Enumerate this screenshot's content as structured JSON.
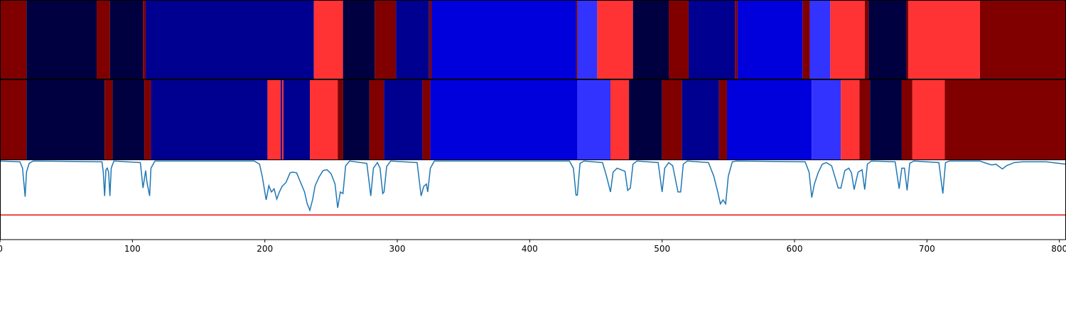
{
  "chart_data": {
    "type": "line",
    "xlim": [
      0,
      805
    ],
    "xticks": [
      0,
      100,
      200,
      300,
      400,
      500,
      600,
      700,
      800
    ],
    "ylim": [
      0,
      1
    ],
    "tracks": [
      {
        "edges": [
          0,
          20,
          73,
          83,
          108,
          110,
          237,
          259,
          283,
          299,
          324,
          326,
          435,
          436,
          451,
          478,
          505,
          520,
          555,
          557,
          606,
          611.5,
          627,
          653,
          656,
          684.5,
          686,
          740,
          805
        ],
        "colors": [
          "#800000",
          "#000040",
          "#800000",
          "#000040",
          "#800000",
          "#000090",
          "#ff3333",
          "#000040",
          "#800000",
          "#000090",
          "#800000",
          "#0000dd",
          "#800000",
          "#3333ff",
          "#ff3333",
          "#000040",
          "#800000",
          "#000090",
          "#800000",
          "#0000dd",
          "#800000",
          "#3333ff",
          "#ff3333",
          "#800000",
          "#000040",
          "#800000",
          "#ff3333",
          "#800000"
        ]
      },
      {
        "edges": [
          0,
          20,
          79,
          85,
          109,
          114,
          202,
          212,
          213,
          214,
          234,
          255,
          259,
          279,
          290,
          319,
          325,
          436,
          461,
          475,
          500,
          515,
          543,
          549,
          613,
          635,
          649,
          657,
          681,
          689,
          713.5,
          805
        ],
        "colors": [
          "#800000",
          "#000040",
          "#800000",
          "#000040",
          "#800000",
          "#000090",
          "#ff3333",
          "#000090",
          "#ff3333",
          "#000090",
          "#ff3333",
          "#800000",
          "#000040",
          "#800000",
          "#000090",
          "#800000",
          "#0000dd",
          "#3333ff",
          "#ff3333",
          "#000040",
          "#800000",
          "#000090",
          "#800000",
          "#0000dd",
          "#3333ff",
          "#ff3333",
          "#800000",
          "#000040",
          "#800000",
          "#ff3333",
          "#800000"
        ]
      }
    ],
    "threshold": 0.31,
    "threshold_color": "#e01010",
    "series": [
      {
        "color": "#1f77b4",
        "x": [
          0,
          15,
          17,
          19,
          20,
          22,
          25,
          77,
          78,
          79,
          80,
          81,
          82,
          83,
          84,
          86,
          106,
          108,
          110,
          111,
          113,
          114,
          117,
          192,
          196,
          198,
          201,
          203,
          205,
          207,
          209,
          211,
          213,
          216,
          219,
          221,
          224,
          227,
          230,
          232,
          234,
          236,
          238,
          241,
          244,
          247,
          250,
          253,
          255,
          257,
          259,
          261,
          264,
          277,
          280,
          282,
          285,
          287,
          289,
          290,
          292,
          295,
          315,
          318,
          320,
          322,
          323,
          325,
          328,
          430,
          433,
          435,
          436,
          438,
          441,
          455,
          458,
          461,
          463,
          466,
          469,
          472,
          474,
          476,
          478,
          481,
          497,
          500,
          502,
          505,
          508,
          512,
          514,
          516,
          519,
          535,
          539,
          542,
          544,
          546,
          548,
          550,
          553,
          556,
          608,
          611,
          613,
          615,
          618,
          621,
          624,
          628,
          633,
          635,
          638,
          641,
          643,
          645,
          648,
          651,
          653,
          655,
          658,
          676,
          679,
          681,
          683,
          685,
          687,
          690,
          709,
          712,
          714,
          717,
          740,
          745,
          749,
          752,
          757,
          760,
          766,
          772,
          790,
          800,
          805
        ],
        "values": [
          0.99,
          0.98,
          0.9,
          0.54,
          0.85,
          0.96,
          0.99,
          0.98,
          0.85,
          0.55,
          0.88,
          0.9,
          0.85,
          0.55,
          0.9,
          0.99,
          0.97,
          0.65,
          0.87,
          0.72,
          0.55,
          0.9,
          0.99,
          0.99,
          0.95,
          0.8,
          0.5,
          0.68,
          0.6,
          0.64,
          0.51,
          0.6,
          0.67,
          0.72,
          0.84,
          0.85,
          0.84,
          0.72,
          0.6,
          0.45,
          0.37,
          0.5,
          0.68,
          0.79,
          0.87,
          0.88,
          0.83,
          0.7,
          0.4,
          0.6,
          0.58,
          0.93,
          0.99,
          0.96,
          0.55,
          0.9,
          0.97,
          0.9,
          0.58,
          0.6,
          0.92,
          0.99,
          0.97,
          0.55,
          0.67,
          0.7,
          0.6,
          0.9,
          0.99,
          0.99,
          0.9,
          0.56,
          0.56,
          0.96,
          0.99,
          0.97,
          0.8,
          0.6,
          0.85,
          0.9,
          0.88,
          0.86,
          0.62,
          0.65,
          0.95,
          0.99,
          0.97,
          0.6,
          0.9,
          0.97,
          0.93,
          0.6,
          0.6,
          0.95,
          0.99,
          0.97,
          0.8,
          0.6,
          0.45,
          0.5,
          0.45,
          0.8,
          0.98,
          0.99,
          0.98,
          0.85,
          0.53,
          0.7,
          0.85,
          0.95,
          0.97,
          0.93,
          0.65,
          0.65,
          0.87,
          0.9,
          0.84,
          0.63,
          0.85,
          0.88,
          0.63,
          0.95,
          0.99,
          0.98,
          0.64,
          0.9,
          0.9,
          0.62,
          0.96,
          0.99,
          0.97,
          0.58,
          0.97,
          0.99,
          0.99,
          0.96,
          0.94,
          0.95,
          0.89,
          0.93,
          0.97,
          0.98,
          0.98,
          0.96,
          0.95
        ]
      }
    ]
  }
}
